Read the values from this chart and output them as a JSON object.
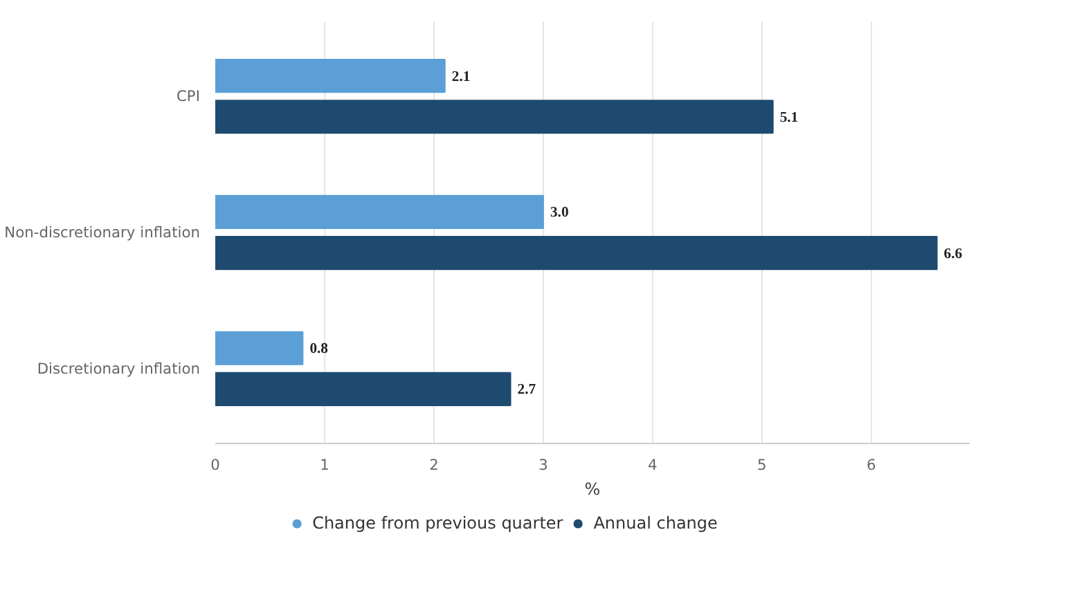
{
  "chart_data": {
    "type": "bar",
    "orientation": "horizontal",
    "categories": [
      "CPI",
      "Non-discretionary inflation",
      "Discretionary inflation"
    ],
    "series": [
      {
        "name": "Change from previous quarter",
        "color": "#5b9fd6",
        "values": [
          2.1,
          3.0,
          0.8
        ],
        "value_labels": [
          "2.1",
          "3.0",
          "0.8"
        ]
      },
      {
        "name": "Annual change",
        "color": "#1f4a70",
        "values": [
          5.1,
          6.6,
          2.7
        ],
        "value_labels": [
          "5.1",
          "6.6",
          "2.7"
        ]
      }
    ],
    "xlabel": "%",
    "xlim": [
      0,
      6.9
    ],
    "xticks": [
      0,
      1,
      2,
      3,
      4,
      5,
      6
    ],
    "grid": "x",
    "legend": "bottom"
  }
}
